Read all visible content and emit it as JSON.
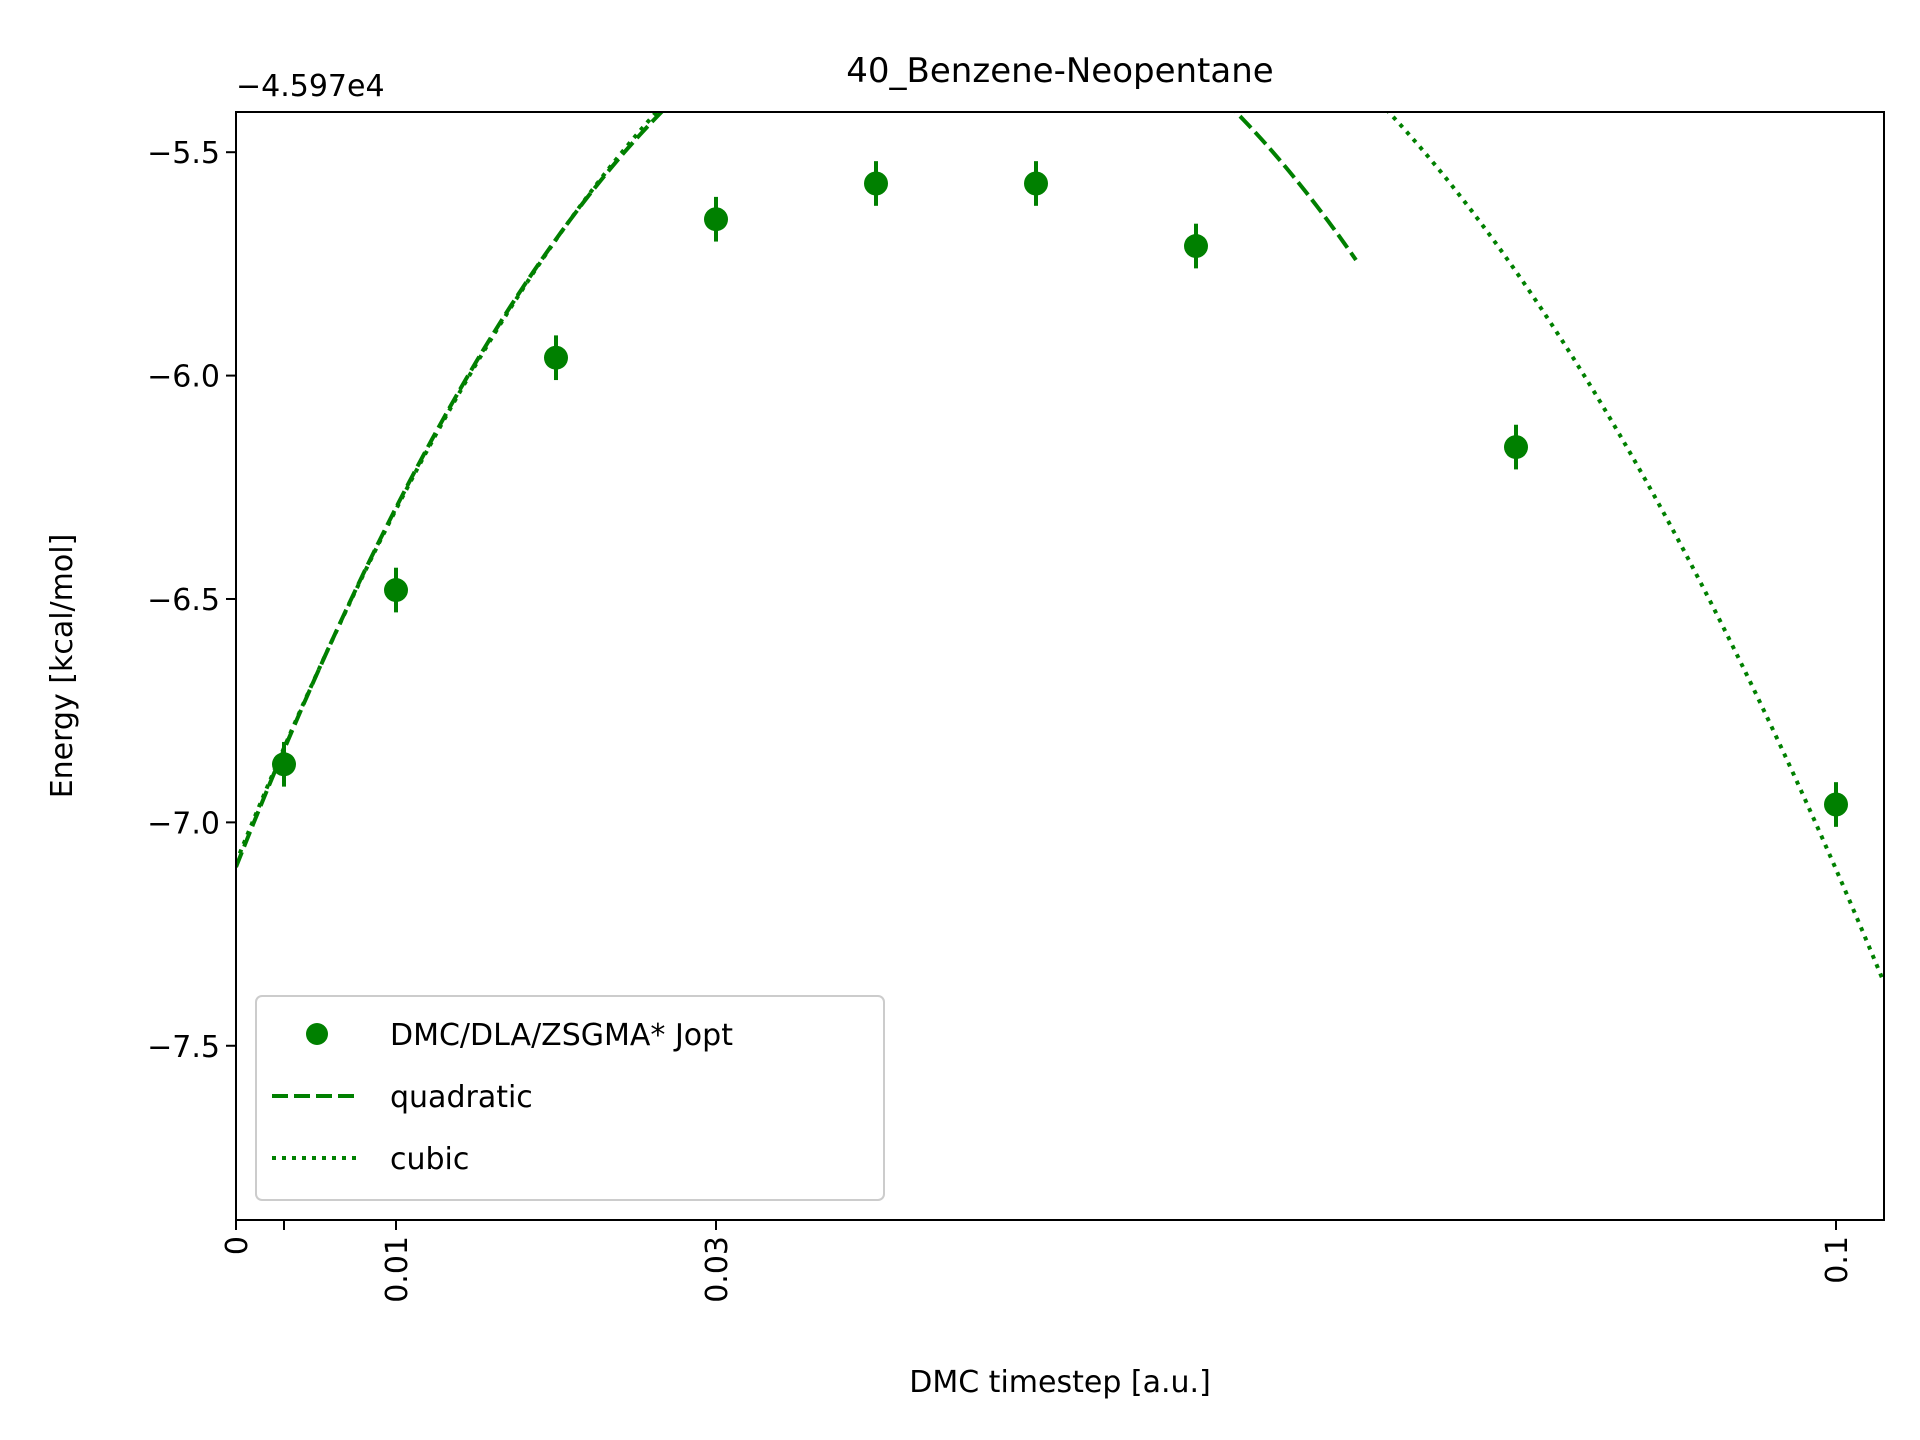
{
  "chart_data": {
    "type": "scatter",
    "title": "40_Benzene-Neopentane",
    "xlabel": "DMC timestep [a.u.]",
    "ylabel": "Energy [kcal/mol]",
    "y_offset_label": "−4.597e4",
    "xlim": [
      0,
      0.103
    ],
    "ylim": [
      -7.89,
      -5.41
    ],
    "x_ticks": [
      {
        "value": 0,
        "label": "0"
      },
      {
        "value": 0.003,
        "label": ""
      },
      {
        "value": 0.01,
        "label": "0.01"
      },
      {
        "value": 0.03,
        "label": "0.03"
      },
      {
        "value": 0.1,
        "label": "0.1"
      }
    ],
    "y_ticks": [
      {
        "value": -5.5,
        "label": "−5.5"
      },
      {
        "value": -6.0,
        "label": "−6.0"
      },
      {
        "value": -6.5,
        "label": "−6.5"
      },
      {
        "value": -7.0,
        "label": "−7.0"
      },
      {
        "value": -7.5,
        "label": "−7.5"
      }
    ],
    "color": "#008000",
    "legend_position": "lower-left",
    "series": [
      {
        "name": "DMC/DLA/ZSGMA* Jopt",
        "kind": "errorbar",
        "x": [
          0.003,
          0.01,
          0.02,
          0.03,
          0.04,
          0.05,
          0.06,
          0.08,
          0.1
        ],
        "y": [
          -6.87,
          -6.48,
          -5.96,
          -5.65,
          -5.57,
          -5.57,
          -5.71,
          -6.16,
          -6.96
        ],
        "yerr": [
          0.05,
          0.05,
          0.05,
          0.05,
          0.05,
          0.05,
          0.05,
          0.05,
          0.05
        ]
      },
      {
        "name": "quadratic",
        "kind": "fit",
        "dash": "dashed",
        "x_range": [
          0,
          0.07
        ],
        "coefficients": [
          -7.1,
          90.6,
          -1017
        ]
      },
      {
        "name": "cubic",
        "kind": "fit",
        "dash": "dotted",
        "x_range": [
          0,
          0.103
        ],
        "coefficients": [
          -7.09,
          88.48,
          -951.3,
          650
        ]
      }
    ]
  }
}
